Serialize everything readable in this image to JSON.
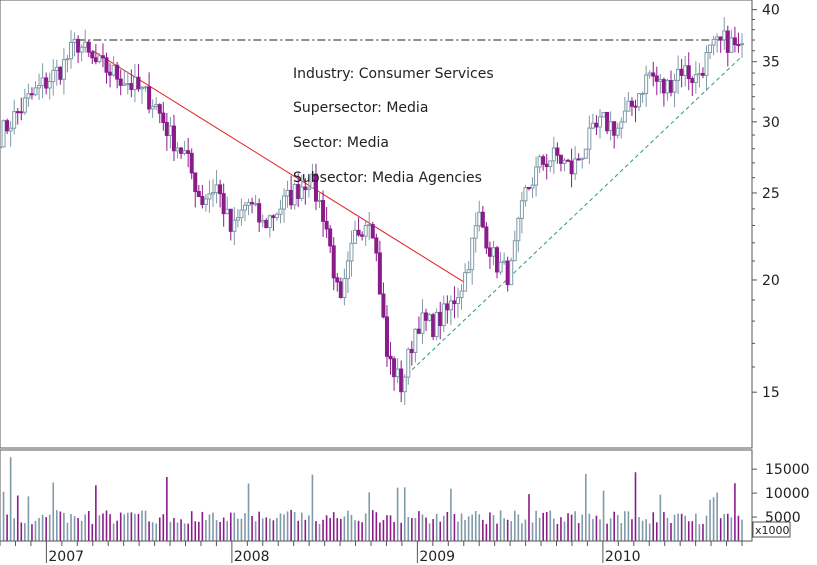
{
  "chart_data": {
    "type": "candlestick",
    "scale": "log",
    "price_axis": {
      "ticks": [
        40,
        35,
        30,
        25,
        20,
        15
      ],
      "tick_labels": [
        "40",
        "35",
        "30",
        "25",
        "20",
        "15"
      ],
      "ylim": [
        13,
        41
      ]
    },
    "volume_axis": {
      "ticks": [
        15000,
        10000,
        5000
      ],
      "tick_labels": [
        "15000",
        "10000",
        "5000"
      ],
      "multiplier_label": "x1000",
      "ylim": [
        0,
        19000
      ]
    },
    "x_axis": {
      "tick_labels": [
        "2007",
        "2008",
        "2009",
        "2010"
      ],
      "start": "2006-10",
      "end": "2010-10"
    },
    "annotations": [
      "Industry: Consumer Services",
      "Supersector: Media",
      "Sector: Media",
      "Subsector: Media Agencies"
    ],
    "close_path": [
      [
        "2006-10",
        29.0
      ],
      [
        "2006-12",
        32.0
      ],
      [
        "2007-02",
        34.5
      ],
      [
        "2007-03",
        36.8
      ],
      [
        "2007-04",
        35.0
      ],
      [
        "2007-06",
        33.5
      ],
      [
        "2007-08",
        31.5
      ],
      [
        "2007-09",
        29.0
      ],
      [
        "2007-10",
        27.5
      ],
      [
        "2007-11",
        24.5
      ],
      [
        "2007-12",
        25.5
      ],
      [
        "2008-01",
        22.5
      ],
      [
        "2008-02",
        24.5
      ],
      [
        "2008-03",
        23.0
      ],
      [
        "2008-05",
        25.0
      ],
      [
        "2008-06",
        26.0
      ],
      [
        "2008-07",
        23.5
      ],
      [
        "2008-08",
        18.5
      ],
      [
        "2008-09",
        22.5
      ],
      [
        "2008-10",
        23.8
      ],
      [
        "2008-11",
        16.5
      ],
      [
        "2008-12",
        15.2
      ],
      [
        "2009-01",
        18.0
      ],
      [
        "2009-02",
        17.8
      ],
      [
        "2009-03",
        18.5
      ],
      [
        "2009-04",
        20.0
      ],
      [
        "2009-05",
        23.5
      ],
      [
        "2009-06",
        21.0
      ],
      [
        "2009-07",
        20.2
      ],
      [
        "2009-08",
        25.0
      ],
      [
        "2009-09",
        27.0
      ],
      [
        "2009-10",
        27.5
      ],
      [
        "2009-11",
        26.5
      ],
      [
        "2009-12",
        28.5
      ],
      [
        "2010-01",
        30.0
      ],
      [
        "2010-02",
        29.5
      ],
      [
        "2010-03",
        31.5
      ],
      [
        "2010-04",
        34.0
      ],
      [
        "2010-05",
        32.5
      ],
      [
        "2010-06",
        34.5
      ],
      [
        "2010-07",
        33.5
      ],
      [
        "2010-08",
        36.0
      ],
      [
        "2010-09",
        37.0
      ],
      [
        "2010-10",
        35.8
      ]
    ],
    "lines": [
      {
        "kind": "resistance-horizontal",
        "style": "dash-dot",
        "color": "#222222",
        "from": [
          "2007-03",
          37.0
        ],
        "to": [
          "2010-09",
          37.0
        ]
      },
      {
        "kind": "downtrend",
        "style": "solid",
        "color": "#e02020",
        "from": [
          "2007-04",
          36.0
        ],
        "to": [
          "2009-04",
          19.9
        ]
      },
      {
        "kind": "uptrend",
        "style": "dashed",
        "color": "#2a9d6e",
        "from": [
          "2008-12",
          15.5
        ],
        "to": [
          "2010-10",
          35.5
        ]
      }
    ],
    "colors": {
      "up": "#7f9aa8",
      "down": "#8b1a8b",
      "background": "#ffffff",
      "axis": "#555555"
    }
  }
}
